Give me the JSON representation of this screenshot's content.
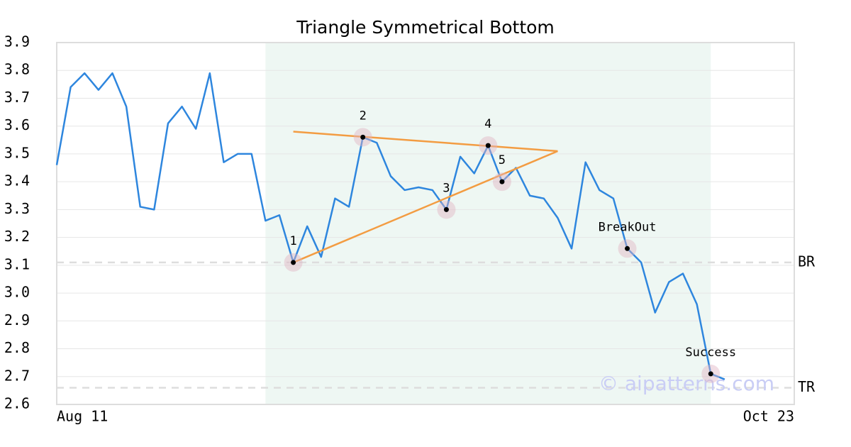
{
  "chart_data": {
    "type": "line",
    "title": "Triangle Symmetrical Bottom",
    "x": [
      0,
      1,
      2,
      3,
      4,
      5,
      6,
      7,
      8,
      9,
      10,
      11,
      12,
      13,
      14,
      15,
      16,
      17,
      18,
      19,
      20,
      21,
      22,
      23,
      24,
      25,
      26,
      27,
      28,
      29,
      30,
      31,
      32,
      33,
      34,
      35,
      36,
      37,
      38,
      39,
      40,
      41,
      42,
      43,
      44,
      45,
      46,
      47,
      48
    ],
    "series": [
      {
        "color": "#2e86de",
        "values": [
          3.46,
          3.74,
          3.79,
          3.73,
          3.79,
          3.67,
          3.31,
          3.3,
          3.61,
          3.67,
          3.59,
          3.79,
          3.47,
          3.5,
          3.5,
          3.26,
          3.28,
          3.11,
          3.24,
          3.13,
          3.34,
          3.31,
          3.56,
          3.54,
          3.42,
          3.37,
          3.38,
          3.37,
          3.3,
          3.49,
          3.43,
          3.53,
          3.4,
          3.45,
          3.35,
          3.34,
          3.27,
          3.16,
          3.47,
          3.37,
          3.34,
          3.16,
          3.11,
          2.93,
          3.04,
          3.07,
          2.96,
          2.71,
          2.69
        ]
      }
    ],
    "xlim": [
      0,
      53
    ],
    "xticks": [
      {
        "value": 0,
        "label": "Aug 11"
      },
      {
        "value": 53,
        "label": "Oct 23"
      }
    ],
    "ylim": [
      2.6,
      3.9
    ],
    "yticks": [
      2.6,
      2.7,
      2.8,
      2.9,
      {
        "value": 3,
        "label": "3.0"
      },
      3.1,
      3.2,
      3.3,
      3.4,
      3.5,
      3.6,
      3.7,
      3.8,
      3.9
    ],
    "grid": true,
    "shaded_range": [
      15,
      47
    ],
    "trendlines": [
      {
        "color": "#f39c42",
        "x": [
          17,
          36
        ],
        "values": [
          3.58,
          3.51
        ]
      },
      {
        "color": "#f39c42",
        "x": [
          17,
          36
        ],
        "values": [
          3.11,
          3.51
        ]
      }
    ],
    "levels": [
      {
        "label": "BR",
        "value": 3.11
      },
      {
        "label": "TR",
        "value": 2.66
      }
    ],
    "points": [
      {
        "label": "1",
        "x": 17,
        "y": 3.11
      },
      {
        "label": "2",
        "x": 22,
        "y": 3.56
      },
      {
        "label": "3",
        "x": 28,
        "y": 3.3
      },
      {
        "label": "4",
        "x": 31,
        "y": 3.53
      },
      {
        "label": "5",
        "x": 32,
        "y": 3.4
      },
      {
        "label": "BreakOut",
        "x": 41,
        "y": 3.16
      },
      {
        "label": "Success",
        "x": 47,
        "y": 2.71
      }
    ],
    "watermark": "© aipatterns.com"
  }
}
